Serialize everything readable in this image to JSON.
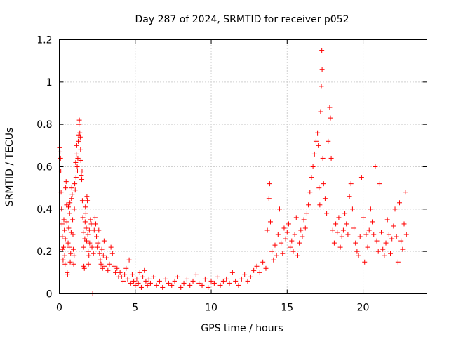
{
  "chart_data": {
    "type": "scatter",
    "title": "Day 287 of 2024, SRMTID for receiver p052",
    "xlabel": "GPS time / hours",
    "ylabel": "SRMTID / TECUs",
    "xlim": [
      0,
      24.2
    ],
    "ylim": [
      0,
      1.2
    ],
    "xticks": [
      0,
      5,
      10,
      15,
      20
    ],
    "yticks": [
      0,
      0.2,
      0.4,
      0.6,
      0.8,
      1.0,
      1.2
    ],
    "xtick_labels": [
      "0",
      "5",
      "10",
      "15",
      "20"
    ],
    "ytick_labels": [
      "0",
      "0.2",
      "0.4",
      "0.6",
      "0.8",
      "1",
      "1.2"
    ],
    "grid": true,
    "marker": "+",
    "color": "#ff0000",
    "series": [
      {
        "name": "p052",
        "points": [
          [
            0.02,
            0.69
          ],
          [
            0.05,
            0.67
          ],
          [
            0.08,
            0.64
          ],
          [
            0.1,
            0.58
          ],
          [
            0.12,
            0.48
          ],
          [
            0.15,
            0.4
          ],
          [
            0.18,
            0.33
          ],
          [
            0.2,
            0.27
          ],
          [
            0.22,
            0.21
          ],
          [
            0.25,
            0.16
          ],
          [
            0.28,
            0.22
          ],
          [
            0.3,
            0.35
          ],
          [
            0.33,
            0.3
          ],
          [
            0.35,
            0.18
          ],
          [
            0.38,
            0.14
          ],
          [
            0.4,
            0.26
          ],
          [
            0.42,
            0.5
          ],
          [
            0.45,
            0.53
          ],
          [
            0.48,
            0.42
          ],
          [
            0.5,
            0.34
          ],
          [
            0.52,
            0.1
          ],
          [
            0.55,
            0.09
          ],
          [
            0.58,
            0.24
          ],
          [
            0.6,
            0.41
          ],
          [
            0.62,
            0.31
          ],
          [
            0.65,
            0.22
          ],
          [
            0.68,
            0.38
          ],
          [
            0.7,
            0.43
          ],
          [
            0.72,
            0.15
          ],
          [
            0.75,
            0.19
          ],
          [
            0.78,
            0.29
          ],
          [
            0.8,
            0.45
          ],
          [
            0.82,
            0.5
          ],
          [
            0.85,
            0.47
          ],
          [
            0.88,
            0.35
          ],
          [
            0.9,
            0.28
          ],
          [
            0.92,
            0.21
          ],
          [
            0.95,
            0.14
          ],
          [
            0.98,
            0.18
          ],
          [
            1.0,
            0.4
          ],
          [
            1.02,
            0.52
          ],
          [
            1.05,
            0.49
          ],
          [
            1.08,
            0.62
          ],
          [
            1.1,
            0.55
          ],
          [
            1.12,
            0.66
          ],
          [
            1.15,
            0.7
          ],
          [
            1.18,
            0.6
          ],
          [
            1.2,
            0.58
          ],
          [
            1.22,
            0.64
          ],
          [
            1.25,
            0.72
          ],
          [
            1.28,
            0.75
          ],
          [
            1.3,
            0.8
          ],
          [
            1.32,
            0.82
          ],
          [
            1.35,
            0.76
          ],
          [
            1.38,
            0.74
          ],
          [
            1.4,
            0.68
          ],
          [
            1.42,
            0.63
          ],
          [
            1.45,
            0.56
          ],
          [
            1.48,
            0.54
          ],
          [
            1.5,
            0.58
          ],
          [
            1.52,
            0.44
          ],
          [
            1.55,
            0.36
          ],
          [
            1.58,
            0.29
          ],
          [
            1.6,
            0.22
          ],
          [
            1.62,
            0.13
          ],
          [
            1.65,
            0.12
          ],
          [
            1.68,
            0.26
          ],
          [
            1.7,
            0.34
          ],
          [
            1.72,
            0.41
          ],
          [
            1.75,
            0.38
          ],
          [
            1.78,
            0.31
          ],
          [
            1.8,
            0.25
          ],
          [
            1.82,
            0.46
          ],
          [
            1.85,
            0.44
          ],
          [
            1.88,
            0.28
          ],
          [
            1.9,
            0.2
          ],
          [
            1.92,
            0.14
          ],
          [
            1.95,
            0.18
          ],
          [
            1.98,
            0.3
          ],
          [
            2.0,
            0.24
          ],
          [
            2.05,
            0.35
          ],
          [
            2.1,
            0.33
          ],
          [
            2.15,
            0.22
          ],
          [
            2.2,
            0.0
          ],
          [
            2.25,
            0.19
          ],
          [
            2.3,
            0.3
          ],
          [
            2.35,
            0.36
          ],
          [
            2.4,
            0.33
          ],
          [
            2.45,
            0.27
          ],
          [
            2.5,
            0.22
          ],
          [
            2.55,
            0.24
          ],
          [
            2.6,
            0.3
          ],
          [
            2.65,
            0.19
          ],
          [
            2.7,
            0.16
          ],
          [
            2.75,
            0.14
          ],
          [
            2.8,
            0.21
          ],
          [
            2.85,
            0.12
          ],
          [
            2.9,
            0.18
          ],
          [
            2.95,
            0.25
          ],
          [
            3.0,
            0.13
          ],
          [
            3.1,
            0.17
          ],
          [
            3.2,
            0.11
          ],
          [
            3.3,
            0.14
          ],
          [
            3.4,
            0.22
          ],
          [
            3.5,
            0.19
          ],
          [
            3.6,
            0.13
          ],
          [
            3.7,
            0.1
          ],
          [
            3.8,
            0.12
          ],
          [
            3.9,
            0.08
          ],
          [
            4.0,
            0.1
          ],
          [
            4.1,
            0.08
          ],
          [
            4.2,
            0.06
          ],
          [
            4.3,
            0.09
          ],
          [
            4.4,
            0.12
          ],
          [
            4.5,
            0.07
          ],
          [
            4.6,
            0.16
          ],
          [
            4.7,
            0.05
          ],
          [
            4.8,
            0.09
          ],
          [
            4.9,
            0.06
          ],
          [
            5.0,
            0.04
          ],
          [
            5.1,
            0.07
          ],
          [
            5.2,
            0.05
          ],
          [
            5.3,
            0.1
          ],
          [
            5.4,
            0.03
          ],
          [
            5.5,
            0.08
          ],
          [
            5.6,
            0.11
          ],
          [
            5.7,
            0.06
          ],
          [
            5.8,
            0.04
          ],
          [
            5.9,
            0.07
          ],
          [
            6.0,
            0.05
          ],
          [
            6.2,
            0.08
          ],
          [
            6.4,
            0.04
          ],
          [
            6.6,
            0.06
          ],
          [
            6.8,
            0.03
          ],
          [
            7.0,
            0.07
          ],
          [
            7.2,
            0.05
          ],
          [
            7.4,
            0.04
          ],
          [
            7.6,
            0.06
          ],
          [
            7.8,
            0.08
          ],
          [
            8.0,
            0.03
          ],
          [
            8.2,
            0.05
          ],
          [
            8.4,
            0.07
          ],
          [
            8.6,
            0.04
          ],
          [
            8.8,
            0.06
          ],
          [
            9.0,
            0.09
          ],
          [
            9.2,
            0.05
          ],
          [
            9.4,
            0.04
          ],
          [
            9.6,
            0.07
          ],
          [
            9.8,
            0.03
          ],
          [
            10.0,
            0.06
          ],
          [
            10.2,
            0.05
          ],
          [
            10.4,
            0.08
          ],
          [
            10.6,
            0.04
          ],
          [
            10.8,
            0.06
          ],
          [
            11.0,
            0.07
          ],
          [
            11.2,
            0.05
          ],
          [
            11.4,
            0.1
          ],
          [
            11.6,
            0.06
          ],
          [
            11.8,
            0.04
          ],
          [
            12.0,
            0.07
          ],
          [
            12.2,
            0.09
          ],
          [
            12.4,
            0.06
          ],
          [
            12.6,
            0.08
          ],
          [
            12.8,
            0.11
          ],
          [
            13.0,
            0.13
          ],
          [
            13.2,
            0.1
          ],
          [
            13.4,
            0.15
          ],
          [
            13.6,
            0.12
          ],
          [
            13.7,
            0.3
          ],
          [
            13.8,
            0.45
          ],
          [
            13.85,
            0.52
          ],
          [
            13.9,
            0.34
          ],
          [
            14.0,
            0.2
          ],
          [
            14.1,
            0.16
          ],
          [
            14.2,
            0.23
          ],
          [
            14.3,
            0.18
          ],
          [
            14.4,
            0.28
          ],
          [
            14.5,
            0.4
          ],
          [
            14.6,
            0.24
          ],
          [
            14.7,
            0.19
          ],
          [
            14.8,
            0.31
          ],
          [
            14.9,
            0.26
          ],
          [
            15.0,
            0.29
          ],
          [
            15.1,
            0.33
          ],
          [
            15.2,
            0.22
          ],
          [
            15.3,
            0.25
          ],
          [
            15.4,
            0.2
          ],
          [
            15.5,
            0.28
          ],
          [
            15.6,
            0.36
          ],
          [
            15.7,
            0.18
          ],
          [
            15.8,
            0.24
          ],
          [
            15.9,
            0.3
          ],
          [
            16.0,
            0.27
          ],
          [
            16.1,
            0.35
          ],
          [
            16.2,
            0.31
          ],
          [
            16.3,
            0.38
          ],
          [
            16.4,
            0.42
          ],
          [
            16.5,
            0.48
          ],
          [
            16.6,
            0.55
          ],
          [
            16.7,
            0.6
          ],
          [
            16.8,
            0.66
          ],
          [
            16.9,
            0.72
          ],
          [
            17.0,
            0.76
          ],
          [
            17.05,
            0.7
          ],
          [
            17.1,
            0.5
          ],
          [
            17.15,
            0.42
          ],
          [
            17.2,
            0.86
          ],
          [
            17.25,
            0.98
          ],
          [
            17.28,
            1.15
          ],
          [
            17.3,
            1.06
          ],
          [
            17.35,
            0.64
          ],
          [
            17.4,
            0.52
          ],
          [
            17.5,
            0.45
          ],
          [
            17.6,
            0.38
          ],
          [
            17.7,
            0.72
          ],
          [
            17.8,
            0.88
          ],
          [
            17.85,
            0.83
          ],
          [
            17.9,
            0.64
          ],
          [
            18.0,
            0.3
          ],
          [
            18.1,
            0.24
          ],
          [
            18.2,
            0.33
          ],
          [
            18.3,
            0.29
          ],
          [
            18.4,
            0.36
          ],
          [
            18.5,
            0.22
          ],
          [
            18.6,
            0.27
          ],
          [
            18.7,
            0.3
          ],
          [
            18.8,
            0.38
          ],
          [
            18.9,
            0.33
          ],
          [
            19.0,
            0.28
          ],
          [
            19.1,
            0.46
          ],
          [
            19.2,
            0.52
          ],
          [
            19.3,
            0.4
          ],
          [
            19.4,
            0.31
          ],
          [
            19.5,
            0.24
          ],
          [
            19.6,
            0.2
          ],
          [
            19.7,
            0.18
          ],
          [
            19.8,
            0.27
          ],
          [
            19.9,
            0.55
          ],
          [
            20.0,
            0.36
          ],
          [
            20.1,
            0.15
          ],
          [
            20.2,
            0.28
          ],
          [
            20.3,
            0.22
          ],
          [
            20.4,
            0.3
          ],
          [
            20.5,
            0.4
          ],
          [
            20.6,
            0.34
          ],
          [
            20.7,
            0.28
          ],
          [
            20.8,
            0.6
          ],
          [
            20.9,
            0.25
          ],
          [
            21.0,
            0.2
          ],
          [
            21.1,
            0.52
          ],
          [
            21.2,
            0.29
          ],
          [
            21.3,
            0.21
          ],
          [
            21.4,
            0.18
          ],
          [
            21.5,
            0.24
          ],
          [
            21.6,
            0.35
          ],
          [
            21.7,
            0.28
          ],
          [
            21.8,
            0.19
          ],
          [
            21.9,
            0.26
          ],
          [
            22.0,
            0.32
          ],
          [
            22.1,
            0.4
          ],
          [
            22.2,
            0.27
          ],
          [
            22.3,
            0.15
          ],
          [
            22.4,
            0.43
          ],
          [
            22.5,
            0.25
          ],
          [
            22.6,
            0.21
          ],
          [
            22.7,
            0.33
          ],
          [
            22.8,
            0.48
          ],
          [
            22.85,
            0.28
          ]
        ]
      }
    ]
  }
}
